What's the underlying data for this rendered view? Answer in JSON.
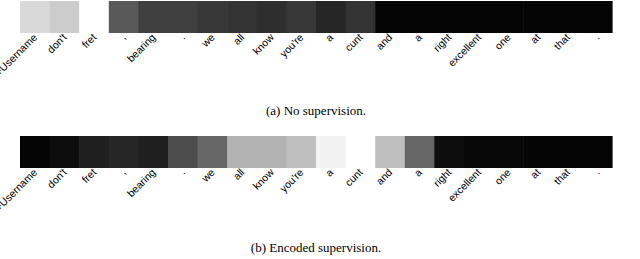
{
  "chart_data": [
    {
      "type": "heatmap",
      "title": "(a) No supervision.",
      "categories": [
        "+Username",
        "don't",
        "fret",
        ",",
        "bearing",
        ".",
        "we",
        "all",
        "know",
        "you're",
        "a",
        "cunt",
        "and",
        "a",
        "right",
        "excellent",
        "one",
        "at",
        "that",
        "."
      ],
      "values": [
        0.85,
        0.8,
        1.0,
        0.35,
        0.25,
        0.25,
        0.22,
        0.2,
        0.18,
        0.22,
        0.15,
        0.2,
        0.02,
        0.02,
        0.02,
        0.02,
        0.02,
        0.02,
        0.02,
        0.02
      ],
      "value_range": [
        0,
        1
      ],
      "tick_labels": "x"
    },
    {
      "type": "heatmap",
      "title": "(b) Encoded supervision.",
      "categories": [
        "+Username",
        "don't",
        "fret",
        ",",
        "bearing",
        ".",
        "we",
        "all",
        "know",
        "you're",
        "a",
        "cunt",
        "and",
        "a",
        "right",
        "excellent",
        "one",
        "at",
        "that",
        "."
      ],
      "values": [
        0.02,
        0.05,
        0.12,
        0.15,
        0.12,
        0.3,
        0.4,
        0.7,
        0.7,
        0.75,
        0.95,
        1.0,
        0.75,
        0.4,
        0.05,
        0.03,
        0.03,
        0.02,
        0.02,
        0.02
      ],
      "value_range": [
        0,
        1
      ],
      "tick_labels": "x"
    }
  ]
}
